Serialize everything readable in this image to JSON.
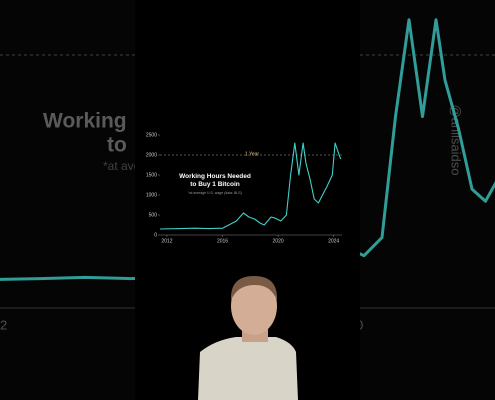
{
  "chart_data": {
    "type": "line",
    "title": "Working Hours Needed to Buy 1 Bitcoin",
    "subtitle": "*at average U.S. wage (data: BLS)",
    "annotation": "1 Year",
    "annotation_value": 2000,
    "x": [
      2011.5,
      2013,
      2014,
      2015,
      2016,
      2017,
      2017.5,
      2017.9,
      2018.3,
      2018.7,
      2019,
      2019.5,
      2019.8,
      2020.2,
      2020.6,
      2020.9,
      2021.2,
      2021.5,
      2021.8,
      2022,
      2022.3,
      2022.6,
      2022.9,
      2023.2,
      2023.5,
      2023.9,
      2024.1,
      2024.3,
      2024.5
    ],
    "series": [
      {
        "name": "Working hours",
        "color": "#3fd0c9",
        "values": [
          150,
          160,
          170,
          160,
          170,
          350,
          550,
          450,
          400,
          300,
          250,
          450,
          420,
          350,
          500,
          1500,
          2300,
          1500,
          2300,
          1800,
          1400,
          900,
          800,
          1000,
          1200,
          1500,
          2300,
          2100,
          1900
        ]
      }
    ],
    "xlim": [
      2011.5,
      2024.6
    ],
    "xticks": [
      2012,
      2016,
      2020,
      2024
    ],
    "ylim": [
      0,
      2600
    ],
    "yticks": [
      0,
      500,
      1000,
      1500,
      2000,
      2500
    ]
  },
  "background": {
    "title_fragments": [
      "Working",
      "to",
      "*at ave"
    ],
    "handle": "@anilsaidso",
    "axis_fragments": [
      "2",
      "0"
    ]
  }
}
